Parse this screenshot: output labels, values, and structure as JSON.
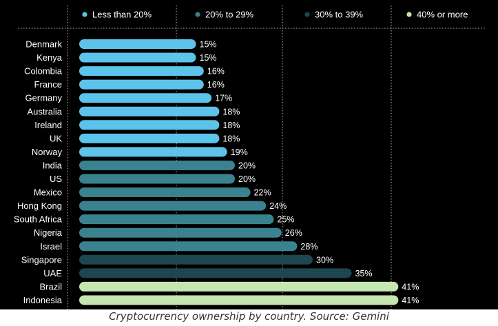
{
  "chart_data": {
    "type": "bar",
    "orientation": "horizontal",
    "title": "",
    "xlabel": "",
    "ylabel": "",
    "xlim": [
      0,
      44
    ],
    "legend_position": "top",
    "legend": [
      {
        "label": "Less than 20%",
        "color": "#5ec3ea"
      },
      {
        "label": "20% to 29%",
        "color": "#3a8290"
      },
      {
        "label": "30% to 39%",
        "color": "#1e4650"
      },
      {
        "label": "40% or more",
        "color": "#c5e6b0"
      }
    ],
    "categories": [
      "Denmark",
      "Kenya",
      "Colombia",
      "France",
      "Germany",
      "Australia",
      "Ireland",
      "UK",
      "Norway",
      "India",
      "US",
      "Mexico",
      "Hong Kong",
      "South Africa",
      "Nigeria",
      "Israel",
      "Singapore",
      "UAE",
      "Brazil",
      "Indonesia"
    ],
    "values": [
      15,
      15,
      16,
      16,
      17,
      18,
      18,
      18,
      19,
      20,
      20,
      22,
      24,
      25,
      26,
      28,
      30,
      35,
      41,
      41
    ],
    "value_labels": [
      "15%",
      "15%",
      "16%",
      "16%",
      "17%",
      "18%",
      "18%",
      "18%",
      "19%",
      "20%",
      "20%",
      "22%",
      "24%",
      "25%",
      "26%",
      "28%",
      "30%",
      "35%",
      "41%",
      "41%"
    ],
    "grid": true
  },
  "caption": "Cryptocurrency ownership by country. Source: Gemini"
}
